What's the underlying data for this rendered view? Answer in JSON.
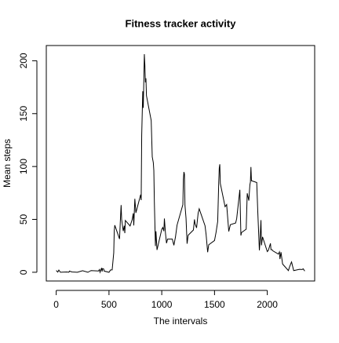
{
  "chart_data": {
    "type": "line",
    "title": "Fitness tracker activity",
    "x_label": "The intervals",
    "y_label": "Mean steps",
    "x": [
      0,
      15,
      25,
      40,
      55,
      100,
      120,
      125,
      150,
      200,
      250,
      300,
      330,
      400,
      410,
      415,
      430,
      435,
      440,
      450,
      455,
      500,
      515,
      530,
      545,
      550,
      555,
      600,
      610,
      615,
      620,
      635,
      645,
      650,
      655,
      700,
      720,
      730,
      735,
      745,
      755,
      800,
      805,
      810,
      820,
      825,
      835,
      840,
      845,
      850,
      855,
      900,
      910,
      920,
      925,
      930,
      940,
      945,
      955,
      1000,
      1010,
      1020,
      1025,
      1035,
      1045,
      1055,
      1100,
      1115,
      1130,
      1145,
      1200,
      1205,
      1210,
      1215,
      1220,
      1230,
      1240,
      1250,
      1300,
      1310,
      1315,
      1330,
      1345,
      1355,
      1410,
      1420,
      1435,
      1445,
      1500,
      1515,
      1530,
      1540,
      1545,
      1550,
      1555,
      1600,
      1615,
      1635,
      1650,
      1700,
      1710,
      1730,
      1740,
      1745,
      1750,
      1755,
      1800,
      1805,
      1810,
      1825,
      1835,
      1840,
      1845,
      1850,
      1900,
      1910,
      1925,
      1930,
      1940,
      1945,
      1955,
      2000,
      2010,
      2030,
      2035,
      2045,
      2055,
      2105,
      2115,
      2120,
      2130,
      2145,
      2200,
      2210,
      2225,
      2230,
      2250,
      2305,
      2330,
      2340,
      2355
    ],
    "series": [
      {
        "name": "Mean steps",
        "color": "#000000",
        "values": [
          1.7,
          0.2,
          2.1,
          0,
          0.1,
          0.3,
          0,
          1.1,
          0.3,
          0,
          1.5,
          0,
          1.6,
          1.2,
          2.6,
          0,
          4.1,
          0.7,
          3.5,
          3.1,
          1.1,
          0,
          2.2,
          2.2,
          18.3,
          39.5,
          44.5,
          31.5,
          53.8,
          63.5,
          50,
          39,
          44,
          37,
          49,
          43.8,
          49.9,
          55.7,
          44.3,
          69.5,
          56.2,
          73.4,
          68.2,
          129.4,
          171.2,
          155.4,
          206.2,
          195.9,
          179.6,
          183.4,
          167,
          143.5,
          109.1,
          103.7,
          96,
          66.2,
          24.8,
          38.8,
          21.1,
          40.6,
          42.4,
          38.9,
          50.8,
          37.2,
          27.5,
          31.4,
          31.4,
          25.5,
          33.4,
          44.6,
          63.9,
          87.7,
          94.8,
          92.8,
          63.4,
          51.1,
          27,
          35,
          40,
          50,
          46,
          42,
          56,
          60,
          44,
          36,
          19,
          26,
          30,
          38,
          48,
          85,
          98.7,
          102.1,
          83.9,
          62,
          64,
          38.6,
          45,
          46.6,
          50.7,
          68.9,
          78,
          56.5,
          34.8,
          37.5,
          40.7,
          58,
          74.7,
          67.8,
          82.6,
          85.3,
          99.5,
          86.6,
          84.9,
          57,
          20.7,
          27.4,
          49.3,
          25.5,
          33.5,
          19.6,
          20.7,
          27.3,
          21.3,
          21.3,
          20.1,
          17.2,
          19.2,
          12.5,
          19,
          7.8,
          1.6,
          4.8,
          8.7,
          9.75,
          1.6,
          2.8,
          2.6,
          3.3,
          1.1
        ]
      }
    ],
    "xlim": [
      -94,
      2449
    ],
    "ylim": [
      -8.25,
      214.4
    ],
    "xticks": [
      0,
      500,
      1000,
      1500,
      2000
    ],
    "yticks": [
      0,
      50,
      100,
      150,
      200
    ]
  }
}
